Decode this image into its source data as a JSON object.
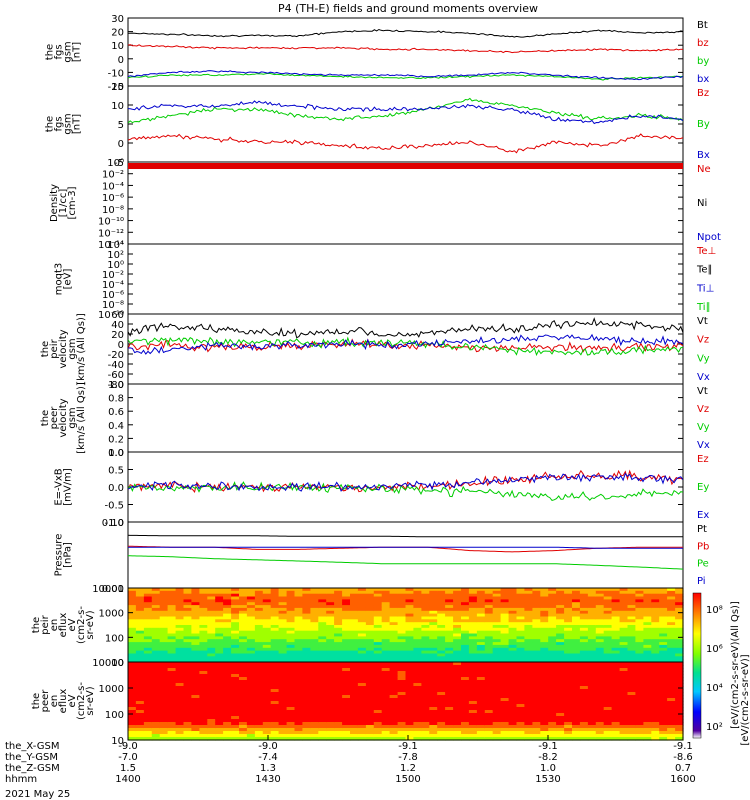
{
  "title": "P4 (TH-E) fields and ground moments overview",
  "date": "2021 May 25",
  "colors": {
    "black": "#000000",
    "red": "#e00000",
    "green": "#00cc00",
    "blue": "#0000cc"
  },
  "chart_data": [
    {
      "type": "line",
      "ylabel": [
        "the",
        "fgs",
        "gsm",
        "[nT]"
      ],
      "ylim": [
        -20,
        30
      ],
      "yticks": [
        "30",
        "20",
        "10",
        "0",
        "-10",
        "-20"
      ],
      "series": [
        {
          "name": "Bt",
          "color": "black",
          "values": [
            19,
            18,
            17,
            17,
            17,
            20,
            21,
            20,
            19,
            16,
            18,
            21,
            19,
            20
          ]
        },
        {
          "name": "bz",
          "color": "red",
          "values": [
            10,
            9,
            8,
            8,
            8,
            8,
            7,
            7,
            6,
            5,
            6,
            7,
            6,
            7
          ]
        },
        {
          "name": "by",
          "color": "green",
          "values": [
            -14,
            -12,
            -12,
            -11,
            -12,
            -13,
            -14,
            -14,
            -13,
            -12,
            -13,
            -15,
            -14,
            -13
          ]
        },
        {
          "name": "bx",
          "color": "blue",
          "values": [
            -13,
            -10,
            -9,
            -10,
            -11,
            -12,
            -12,
            -13,
            -12,
            -10,
            -12,
            -14,
            -15,
            -13
          ]
        }
      ]
    },
    {
      "type": "line",
      "ylabel": [
        "the",
        "fgs",
        "gsm",
        "[nT]"
      ],
      "ylim": [
        -8,
        15
      ],
      "yticks": [
        "15",
        "10",
        "5",
        "0",
        "-5"
      ],
      "series": [
        {
          "name": "Bz",
          "color": "red",
          "values": [
            -1,
            0,
            -1,
            -2,
            -2,
            -3,
            -4,
            -3,
            -2,
            -5,
            -2,
            -3,
            0,
            -1
          ]
        },
        {
          "name": "By",
          "color": "green",
          "values": [
            4,
            6,
            8,
            8,
            6,
            5,
            6,
            8,
            11,
            9,
            7,
            5,
            6,
            5
          ]
        },
        {
          "name": "Bx",
          "color": "blue",
          "values": [
            8,
            9,
            9,
            10,
            9,
            8,
            8,
            8,
            9,
            8,
            5,
            4,
            6,
            5
          ]
        }
      ]
    },
    {
      "type": "line",
      "ylabel": [
        "Density",
        "[1/cc]",
        "[cm-3]"
      ],
      "yticks": [
        "10⁰",
        "10⁻²",
        "10⁻⁴",
        "10⁻⁶",
        "10⁻⁸",
        "10⁻¹⁰",
        "10⁻¹²",
        "10⁻¹⁴"
      ],
      "series": [
        {
          "name": "Ne",
          "color": "red"
        },
        {
          "name": "Ni",
          "color": "black"
        },
        {
          "name": "Npot",
          "color": "blue"
        }
      ]
    },
    {
      "type": "line",
      "ylabel": [
        "moqt3",
        "[eV]"
      ],
      "yticks": [
        "10⁴",
        "10²",
        "10⁰",
        "10⁻²",
        "10⁻⁴",
        "10⁻⁶",
        "10⁻⁸",
        "10⁻¹⁰"
      ],
      "series": [
        {
          "name": "Te⊥",
          "color": "red"
        },
        {
          "name": "Te∥",
          "color": "black"
        },
        {
          "name": "Ti⊥",
          "color": "blue"
        },
        {
          "name": "Ti∥",
          "color": "green"
        }
      ]
    },
    {
      "type": "line",
      "ylabel": [
        "the",
        "peir",
        "velocity",
        "gsm",
        "[km/s (All Qs)]"
      ],
      "ylim": [
        -80,
        60
      ],
      "yticks": [
        "60",
        "40",
        "20",
        "0",
        "-20",
        "-40",
        "-60",
        "-80"
      ],
      "series": [
        {
          "name": "Vt",
          "color": "black",
          "values": [
            25,
            35,
            30,
            25,
            20,
            25,
            20,
            22,
            28,
            32,
            38,
            42,
            38,
            30
          ]
        },
        {
          "name": "Vz",
          "color": "red",
          "values": [
            -5,
            0,
            -8,
            -5,
            -3,
            0,
            -2,
            -5,
            -8,
            -10,
            -5,
            -8,
            -5,
            -5
          ]
        },
        {
          "name": "Vy",
          "color": "green",
          "values": [
            5,
            8,
            3,
            5,
            2,
            3,
            2,
            0,
            -5,
            -12,
            -15,
            -18,
            -12,
            -10
          ]
        },
        {
          "name": "Vx",
          "color": "blue",
          "values": [
            -15,
            -10,
            -5,
            -5,
            -3,
            0,
            -2,
            0,
            5,
            8,
            15,
            10,
            5,
            5
          ]
        }
      ]
    },
    {
      "type": "line",
      "ylabel": [
        "the",
        "peer",
        "velocity",
        "gsm",
        "[km/s (All Qs)]"
      ],
      "ylim": [
        0,
        1
      ],
      "yticks": [
        "1.0",
        "0.8",
        "0.6",
        "0.4",
        "0.2",
        "0.0"
      ],
      "series": [
        {
          "name": "Vt",
          "color": "black"
        },
        {
          "name": "Vz",
          "color": "red"
        },
        {
          "name": "Vy",
          "color": "green"
        },
        {
          "name": "Vx",
          "color": "blue"
        }
      ]
    },
    {
      "type": "line",
      "ylabel": [
        "E=-VxB",
        "[mV/m]"
      ],
      "ylim": [
        -1,
        1
      ],
      "yticks": [
        "1.0",
        "0.5",
        "0.0",
        "-0.5",
        "-1.0"
      ],
      "series": [
        {
          "name": "Ez",
          "color": "red",
          "values": [
            0,
            0.05,
            0,
            0,
            0,
            0,
            0,
            0.05,
            0.1,
            0.2,
            0.3,
            0.35,
            0.3,
            0.2
          ]
        },
        {
          "name": "Ey",
          "color": "green",
          "values": [
            0,
            -0.05,
            0,
            0,
            0,
            0,
            -0.05,
            -0.1,
            -0.1,
            -0.2,
            -0.3,
            -0.25,
            -0.2,
            -0.15
          ]
        },
        {
          "name": "Ex",
          "color": "blue",
          "values": [
            0,
            0.05,
            0,
            0,
            0,
            0,
            0.05,
            0.05,
            0.1,
            0.2,
            0.25,
            0.3,
            0.25,
            0.2
          ]
        }
      ]
    },
    {
      "type": "line",
      "ylabel": [
        "Pressure",
        "[nPa]"
      ],
      "ylim": [
        0.01,
        0.8
      ],
      "log": true,
      "yticks": [
        "0.10",
        "0.01"
      ],
      "series": [
        {
          "name": "Pt",
          "color": "black",
          "values": [
            0.33,
            0.32,
            0.32,
            0.32,
            0.31,
            0.31,
            0.31,
            0.3,
            0.3,
            0.3,
            0.3,
            0.3,
            0.3,
            0.3
          ]
        },
        {
          "name": "Pb",
          "color": "red",
          "values": [
            0.16,
            0.15,
            0.15,
            0.13,
            0.13,
            0.14,
            0.15,
            0.15,
            0.12,
            0.11,
            0.12,
            0.14,
            0.15,
            0.15
          ]
        },
        {
          "name": "Pe",
          "color": "green",
          "values": [
            0.085,
            0.08,
            0.07,
            0.065,
            0.06,
            0.055,
            0.05,
            0.05,
            0.05,
            0.05,
            0.05,
            0.045,
            0.04,
            0.035
          ]
        },
        {
          "name": "Pi",
          "color": "blue",
          "values": [
            0.15,
            0.15,
            0.15,
            0.15,
            0.15,
            0.15,
            0.15,
            0.15,
            0.15,
            0.15,
            0.15,
            0.14,
            0.14,
            0.14
          ]
        }
      ]
    },
    {
      "type": "heatmap",
      "ylabel": [
        "the",
        "peir",
        "en",
        "eflux",
        "eV",
        "(cm2-s-",
        "sr-eV)"
      ],
      "yticks": [
        "10000",
        "1000",
        "100",
        "10"
      ]
    },
    {
      "type": "heatmap",
      "ylabel": [
        "the",
        "peer",
        "en",
        "eflux",
        "eV",
        "(cm2-s-",
        "sr-eV)"
      ],
      "yticks": [
        "10000",
        "1000",
        "100",
        "10"
      ]
    }
  ],
  "colorbar": {
    "ticks": [
      "10⁸",
      "10⁶",
      "10⁴",
      "10²"
    ],
    "label": "[eV/(cm2-s-sr-eV)(All Qs)]",
    "label2": "[eV/(cm2-s-sr-eV)]"
  },
  "xaxis": {
    "rows": [
      {
        "label": "the_X-GSM",
        "values": [
          "-9.0",
          "-9.0",
          "-9.1",
          "-9.1",
          "-9.1"
        ]
      },
      {
        "label": "the_Y-GSM",
        "values": [
          "-7.0",
          "-7.4",
          "-7.8",
          "-8.2",
          "-8.6"
        ]
      },
      {
        "label": "the_Z-GSM",
        "values": [
          "1.5",
          "1.3",
          "1.2",
          "1.0",
          "0.7"
        ]
      },
      {
        "label": "hhmm",
        "values": [
          "1400",
          "1430",
          "1500",
          "1530",
          "1600"
        ]
      }
    ]
  }
}
